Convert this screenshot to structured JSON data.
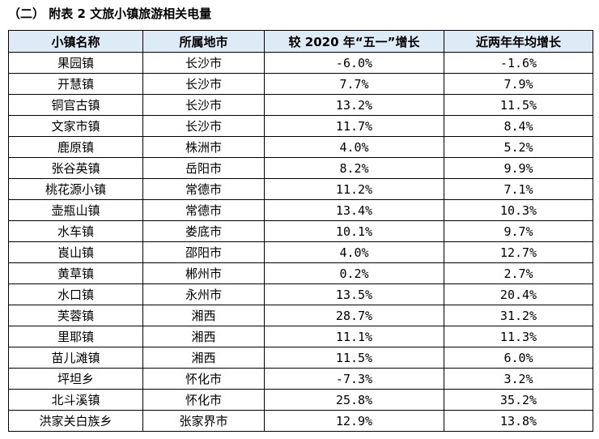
{
  "caption": "（二）  附表 2  文旅小镇旅游相关电量",
  "columns": [
    "小镇名称",
    "所属地市",
    "较 2020 年“五一”增长",
    "近两年年均增长"
  ],
  "rows": [
    [
      "果园镇",
      "长沙市",
      "-6.0%",
      "-1.6%"
    ],
    [
      "开慧镇",
      "长沙市",
      "7.7%",
      "7.9%"
    ],
    [
      "铜官古镇",
      "长沙市",
      "13.2%",
      "11.5%"
    ],
    [
      "文家市镇",
      "长沙市",
      "11.7%",
      "8.4%"
    ],
    [
      "鹿原镇",
      "株洲市",
      "4.0%",
      "5.2%"
    ],
    [
      "张谷英镇",
      "岳阳市",
      "8.2%",
      "9.9%"
    ],
    [
      "桃花源小镇",
      "常德市",
      "11.2%",
      "7.1%"
    ],
    [
      "壶瓶山镇",
      "常德市",
      "13.4%",
      "10.3%"
    ],
    [
      "水车镇",
      "娄底市",
      "10.1%",
      "9.7%"
    ],
    [
      "崀山镇",
      "邵阳市",
      "4.0%",
      "12.7%"
    ],
    [
      "黄草镇",
      "郴州市",
      "0.2%",
      "2.7%"
    ],
    [
      "水口镇",
      "永州市",
      "13.5%",
      "20.4%"
    ],
    [
      "芙蓉镇",
      "湘西",
      "28.7%",
      "31.2%"
    ],
    [
      "里耶镇",
      "湘西",
      "11.1%",
      "11.3%"
    ],
    [
      "苗儿滩镇",
      "湘西",
      "11.5%",
      "6.0%"
    ],
    [
      "坪坦乡",
      "怀化市",
      "-7.3%",
      "3.2%"
    ],
    [
      "北斗溪镇",
      "怀化市",
      "25.8%",
      "35.2%"
    ],
    [
      "洪家关白族乡",
      "张家界市",
      "12.9%",
      "13.8%"
    ]
  ],
  "colors": {
    "header_bg": "#DDEBF7",
    "border": "#000000"
  }
}
